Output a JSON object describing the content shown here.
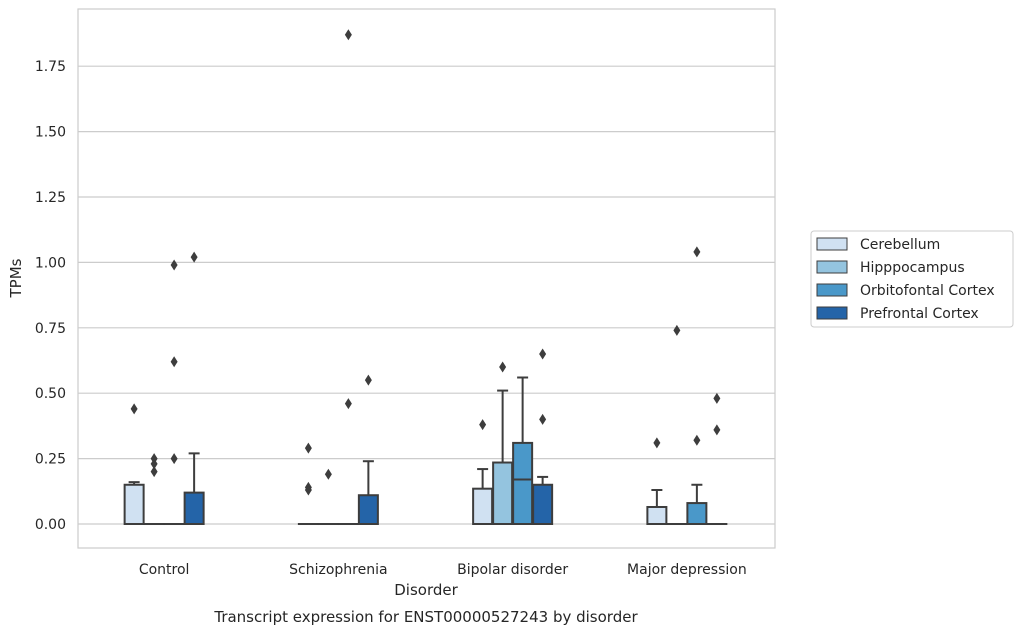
{
  "chart_data": {
    "type": "box",
    "xlabel": "Disorder",
    "ylabel": "TPMs",
    "caption": "Transcript expression for ENST00000527243 by disorder",
    "ylim": [
      -0.09,
      1.97
    ],
    "yticks": [
      "0.00",
      "0.25",
      "0.50",
      "0.75",
      "1.00",
      "1.25",
      "1.50",
      "1.75"
    ],
    "grid": "horizontal",
    "legend_position": "right",
    "categories": [
      "Control",
      "Schizophrenia",
      "Bipolar disorder",
      "Major depression"
    ],
    "series": [
      {
        "name": "Cerebellum",
        "color": "#d0e1f2",
        "boxes": [
          {
            "q1": 0.0,
            "median": 0.0,
            "q3": 0.15,
            "whisker_low": 0.0,
            "whisker_high": 0.16,
            "outliers": [
              0.44
            ]
          },
          {
            "q1": 0.0,
            "median": 0.0,
            "q3": 0.0,
            "whisker_low": 0.0,
            "whisker_high": 0.0,
            "outliers": [
              0.29,
              0.14,
              0.13
            ]
          },
          {
            "q1": 0.0,
            "median": 0.0,
            "q3": 0.135,
            "whisker_low": 0.0,
            "whisker_high": 0.21,
            "outliers": [
              0.38
            ]
          },
          {
            "q1": 0.0,
            "median": 0.0,
            "q3": 0.065,
            "whisker_low": 0.0,
            "whisker_high": 0.13,
            "outliers": [
              0.31
            ]
          }
        ]
      },
      {
        "name": "Hipppocampus",
        "color": "#94c4df",
        "boxes": [
          {
            "q1": 0.0,
            "median": 0.0,
            "q3": 0.0,
            "whisker_low": 0.0,
            "whisker_high": 0.0,
            "outliers": [
              0.25,
              0.23,
              0.2
            ]
          },
          {
            "q1": 0.0,
            "median": 0.0,
            "q3": 0.0,
            "whisker_low": 0.0,
            "whisker_high": 0.0,
            "outliers": [
              0.19
            ]
          },
          {
            "q1": 0.0,
            "median": 0.0,
            "q3": 0.235,
            "whisker_low": 0.0,
            "whisker_high": 0.51,
            "outliers": [
              0.6
            ]
          },
          {
            "q1": 0.0,
            "median": 0.0,
            "q3": 0.0,
            "whisker_low": 0.0,
            "whisker_high": 0.0,
            "outliers": [
              0.74
            ]
          }
        ]
      },
      {
        "name": "Orbitofontal Cortex",
        "color": "#4a98c9",
        "boxes": [
          {
            "q1": 0.0,
            "median": 0.0,
            "q3": 0.0,
            "whisker_low": 0.0,
            "whisker_high": 0.0,
            "outliers": [
              0.99,
              0.62,
              0.25
            ]
          },
          {
            "q1": 0.0,
            "median": 0.0,
            "q3": 0.0,
            "whisker_low": 0.0,
            "whisker_high": 0.0,
            "outliers": [
              1.87,
              0.46
            ]
          },
          {
            "q1": 0.0,
            "median": 0.17,
            "q3": 0.31,
            "whisker_low": 0.0,
            "whisker_high": 0.56,
            "outliers": []
          },
          {
            "q1": 0.0,
            "median": 0.0,
            "q3": 0.08,
            "whisker_low": 0.0,
            "whisker_high": 0.15,
            "outliers": [
              1.04,
              0.32
            ]
          }
        ]
      },
      {
        "name": "Prefrontal Cortex",
        "color": "#2464a8",
        "boxes": [
          {
            "q1": 0.0,
            "median": 0.0,
            "q3": 0.12,
            "whisker_low": 0.0,
            "whisker_high": 0.27,
            "outliers": [
              1.02
            ]
          },
          {
            "q1": 0.0,
            "median": 0.0,
            "q3": 0.11,
            "whisker_low": 0.0,
            "whisker_high": 0.24,
            "outliers": [
              0.55
            ]
          },
          {
            "q1": 0.0,
            "median": 0.0,
            "q3": 0.15,
            "whisker_low": 0.0,
            "whisker_high": 0.18,
            "outliers": [
              0.65,
              0.4
            ]
          },
          {
            "q1": 0.0,
            "median": 0.0,
            "q3": 0.0,
            "whisker_low": 0.0,
            "whisker_high": 0.0,
            "outliers": [
              0.48,
              0.36
            ]
          }
        ]
      }
    ]
  }
}
